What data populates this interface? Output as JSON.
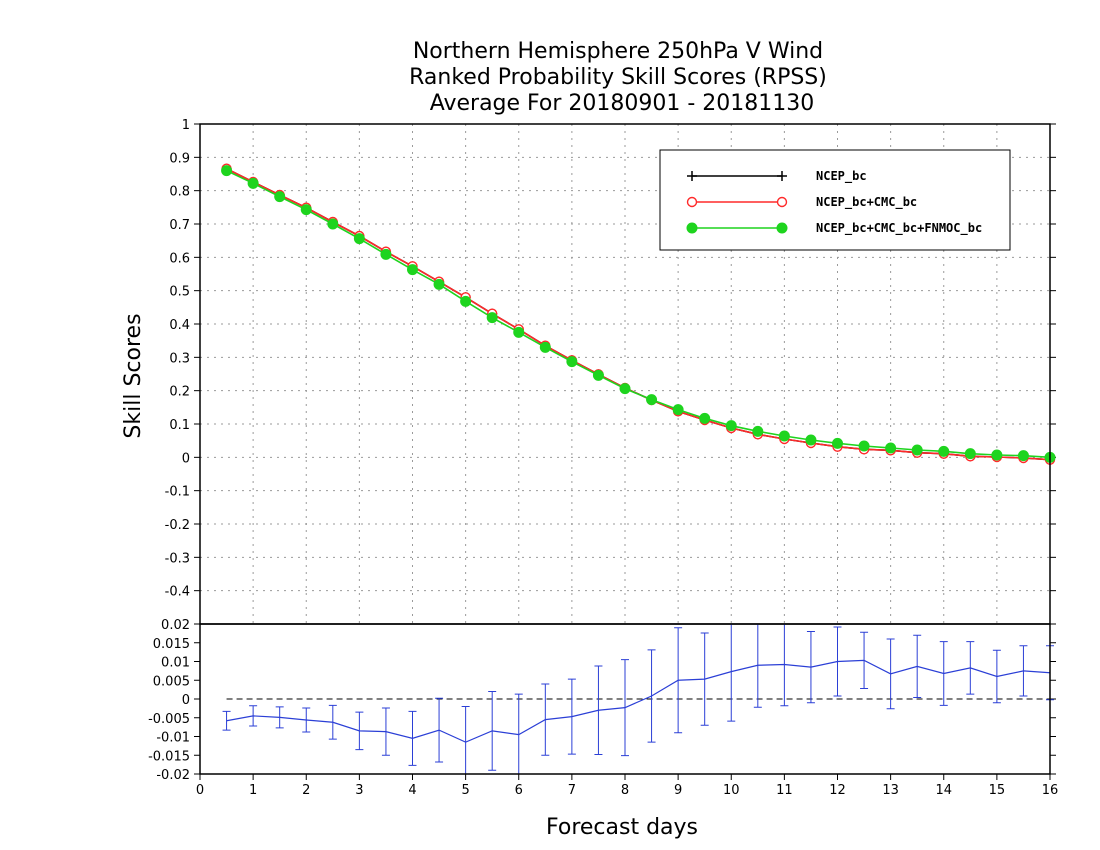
{
  "chart_data": [
    {
      "type": "line",
      "title_lines": [
        "Northern Hemisphere 250hPa V Wind",
        "Ranked Probability Skill Scores (RPSS)",
        "Average For 20180901 - 20181130"
      ],
      "xlabel": "Forecast days",
      "ylabel": "Skill Scores",
      "xlim": [
        0,
        16
      ],
      "ylim": [
        -0.5,
        1
      ],
      "grid": true,
      "legend_position": "top-right",
      "x_ticks": [
        "0",
        "1",
        "2",
        "3",
        "4",
        "5",
        "6",
        "7",
        "8",
        "9",
        "10",
        "11",
        "12",
        "13",
        "14",
        "15",
        "16"
      ],
      "y_ticks": [
        "1",
        "0.9",
        "0.8",
        "0.7",
        "0.6",
        "0.5",
        "0.4",
        "0.3",
        "0.2",
        "0.1",
        "0",
        "-0.1",
        "-0.2",
        "-0.3",
        "-0.4"
      ],
      "x": [
        0.5,
        1,
        1.5,
        2,
        2.5,
        3,
        3.5,
        4,
        4.5,
        5,
        5.5,
        6,
        6.5,
        7,
        7.5,
        8,
        8.5,
        9,
        9.5,
        10,
        10.5,
        11,
        11.5,
        12,
        12.5,
        13,
        13.5,
        14,
        14.5,
        15,
        15.5,
        16
      ],
      "series": [
        {
          "name": "NCEP_bc",
          "color": "#000000",
          "marker": "plus",
          "values": [
            0.866,
            0.826,
            0.787,
            0.749,
            0.706,
            0.664,
            0.617,
            0.573,
            0.527,
            0.48,
            0.431,
            0.384,
            0.335,
            0.291,
            0.249,
            0.208,
            0.172,
            0.138,
            0.112,
            0.088,
            0.069,
            0.055,
            0.043,
            0.032,
            0.024,
            0.021,
            0.014,
            0.011,
            0.003,
            0.001,
            -0.002,
            -0.007
          ]
        },
        {
          "name": "NCEP_bc+CMC_bc",
          "color": "#ff2a2a",
          "marker": "open-circle",
          "values": [
            0.866,
            0.826,
            0.787,
            0.749,
            0.706,
            0.664,
            0.617,
            0.573,
            0.527,
            0.48,
            0.431,
            0.384,
            0.335,
            0.291,
            0.249,
            0.208,
            0.172,
            0.138,
            0.112,
            0.088,
            0.069,
            0.055,
            0.043,
            0.032,
            0.024,
            0.021,
            0.014,
            0.011,
            0.003,
            0.001,
            -0.002,
            -0.007
          ]
        },
        {
          "name": "NCEP_bc+CMC_bc+FNMOC_bc",
          "color": "#1ed41e",
          "marker": "filled-circle",
          "values": [
            0.86,
            0.822,
            0.782,
            0.743,
            0.7,
            0.656,
            0.609,
            0.563,
            0.519,
            0.468,
            0.419,
            0.375,
            0.33,
            0.287,
            0.246,
            0.206,
            0.173,
            0.143,
            0.117,
            0.095,
            0.078,
            0.064,
            0.052,
            0.042,
            0.034,
            0.028,
            0.022,
            0.018,
            0.011,
            0.007,
            0.005,
            0.0
          ]
        }
      ]
    },
    {
      "type": "line",
      "subtype": "errorbar",
      "xlim": [
        0,
        16
      ],
      "ylim": [
        -0.02,
        0.02
      ],
      "grid": false,
      "y_ticks": [
        "0.02",
        "0.015",
        "0.01",
        "0.005",
        "0",
        "-0.005",
        "-0.01",
        "-0.015",
        "-0.02"
      ],
      "x": [
        0.5,
        1,
        1.5,
        2,
        2.5,
        3,
        3.5,
        4,
        4.5,
        5,
        5.5,
        6,
        6.5,
        7,
        7.5,
        8,
        8.5,
        9,
        9.5,
        10,
        10.5,
        11,
        11.5,
        12,
        12.5,
        13,
        13.5,
        14,
        14.5,
        15,
        15.5,
        16
      ],
      "series": [
        {
          "color": "#2b3fd6",
          "values": [
            -0.0058,
            -0.0045,
            -0.0049,
            -0.0056,
            -0.0062,
            -0.0085,
            -0.0087,
            -0.0105,
            -0.0083,
            -0.0115,
            -0.0085,
            -0.0095,
            -0.0055,
            -0.0047,
            -0.003,
            -0.0023,
            0.0008,
            0.005,
            0.0053,
            0.0073,
            0.009,
            0.0092,
            0.0085,
            0.01,
            0.0103,
            0.0067,
            0.0087,
            0.0068,
            0.0083,
            0.006,
            0.0075,
            0.007
          ],
          "error": [
            0.0025,
            0.0027,
            0.0028,
            0.0032,
            0.0045,
            0.005,
            0.0063,
            0.0072,
            0.0085,
            0.0095,
            0.0105,
            0.0108,
            0.0095,
            0.01,
            0.0118,
            0.0128,
            0.0123,
            0.014,
            0.0123,
            0.0132,
            0.0112,
            0.011,
            0.0095,
            0.0092,
            0.0075,
            0.0093,
            0.0083,
            0.0085,
            0.007,
            0.007,
            0.0067,
            0.0072
          ]
        }
      ]
    }
  ]
}
